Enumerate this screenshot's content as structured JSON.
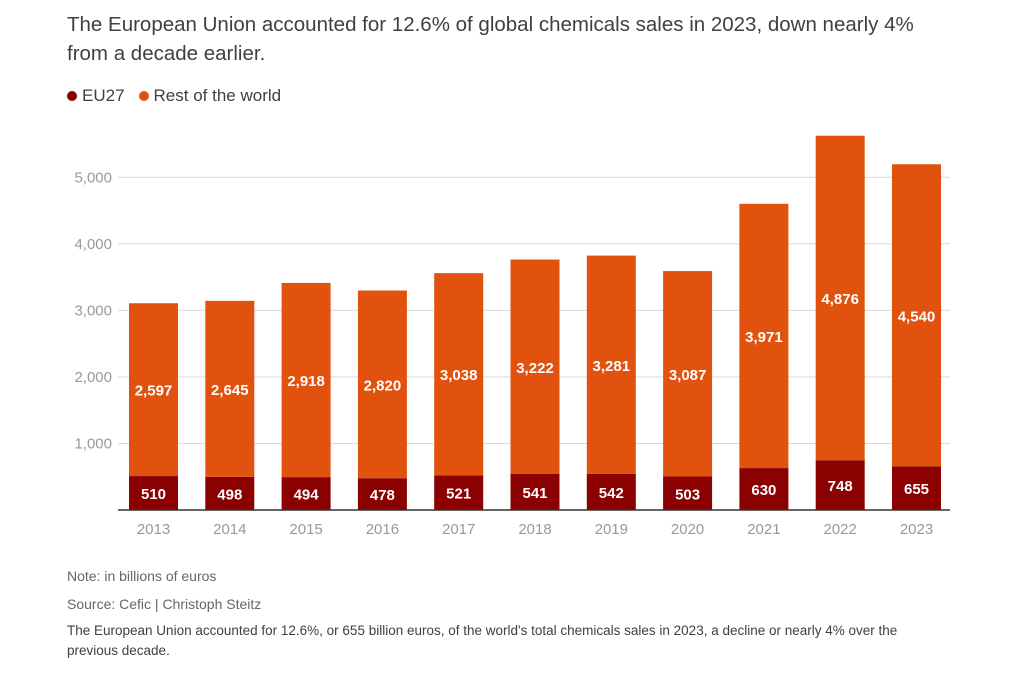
{
  "title": "The European Union accounted for 12.6% of global chemicals sales in 2023, down nearly 4% from a decade earlier.",
  "note": "Note: in billions of euros",
  "source": "Source: Cefic | Christoph Steitz",
  "caption": "The European Union accounted for 12.6%, or 655 billion euros, of the world's total chemicals sales in 2023, a decline or nearly 4% over the previous decade.",
  "colors": {
    "eu": "#8B0000",
    "rest": "#E2520F",
    "grid": "#d9d9d9",
    "axis": "#333333",
    "tick": "#999999"
  },
  "chart_data": {
    "type": "bar",
    "stacked": true,
    "categories": [
      "2013",
      "2014",
      "2015",
      "2016",
      "2017",
      "2018",
      "2019",
      "2020",
      "2021",
      "2022",
      "2023"
    ],
    "series": [
      {
        "name": "EU27",
        "values": [
          510,
          498,
          494,
          478,
          521,
          541,
          542,
          503,
          630,
          748,
          655
        ]
      },
      {
        "name": "Rest of the world",
        "values": [
          2597,
          2645,
          2918,
          2820,
          3038,
          3222,
          3281,
          3087,
          3971,
          4876,
          4540
        ]
      }
    ],
    "value_labels": {
      "EU27": [
        "510",
        "498",
        "494",
        "478",
        "521",
        "541",
        "542",
        "503",
        "630",
        "748",
        "655"
      ],
      "Rest of the world": [
        "2,597",
        "2,645",
        "2,918",
        "2,820",
        "3,038",
        "3,222",
        "3,281",
        "3,087",
        "3,971",
        "4,876",
        "4,540"
      ]
    },
    "yticks": [
      1000,
      2000,
      3000,
      4000,
      5000
    ],
    "ytick_labels": [
      "1,000",
      "2,000",
      "3,000",
      "4,000",
      "5,000"
    ],
    "ylim": [
      0,
      5700
    ],
    "grid": true,
    "legend_position": "top-left"
  }
}
